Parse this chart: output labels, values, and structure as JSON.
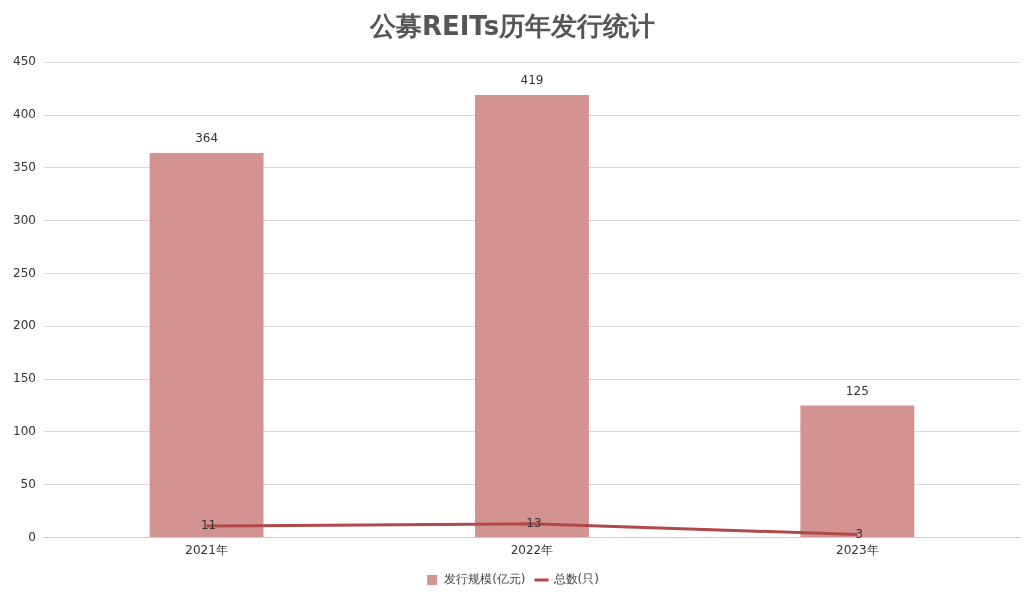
{
  "chart_data": {
    "type": "bar",
    "title": "公募REITs历年发行统计",
    "categories": [
      "2021年",
      "2022年",
      "2023年"
    ],
    "series": [
      {
        "name": "发行规模(亿元)",
        "color": "#d39391",
        "values": [
          364,
          419,
          125
        ]
      },
      {
        "name": "总数(只)",
        "type": "line",
        "color": "#b04a48",
        "values": [
          11,
          13,
          3
        ]
      }
    ],
    "ylim": [
      0,
      450
    ],
    "yticks": [
      0,
      50,
      100,
      150,
      200,
      250,
      300,
      350,
      400,
      450
    ],
    "grid": "y",
    "legend": "bottom",
    "data_labels": true,
    "marker": "none"
  }
}
